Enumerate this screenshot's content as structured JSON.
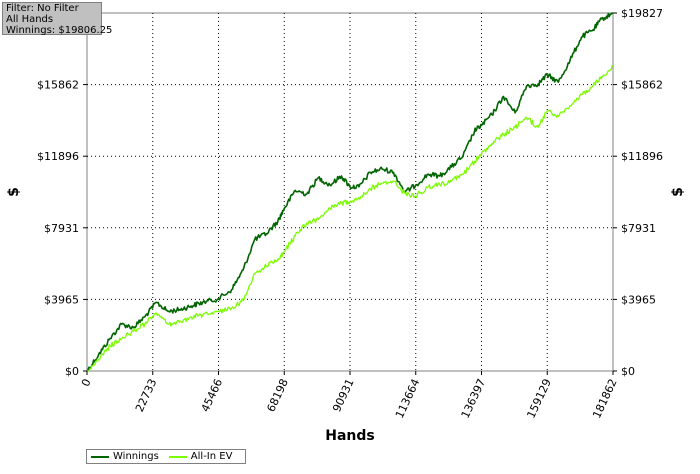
{
  "info_box": {
    "filter": "Filter: No Filter",
    "hands": "All Hands",
    "winnings": "Winnings: $19806.25"
  },
  "chart_data": {
    "type": "line",
    "xlabel": "Hands",
    "ylabel": "$",
    "xlim": [
      0,
      181862
    ],
    "ylim": [
      0,
      19827
    ],
    "x_ticks": [
      "0",
      "22733",
      "45466",
      "68198",
      "90931",
      "113664",
      "136397",
      "159129",
      "181862"
    ],
    "y_ticks": [
      "$0",
      "$3965",
      "$7931",
      "$11896",
      "$15862",
      "$19827"
    ],
    "grid": true,
    "legend_position": "bottom-left",
    "series": [
      {
        "name": "Winnings",
        "color": "#006400",
        "x": [
          0,
          4000,
          8000,
          12000,
          16000,
          20000,
          24000,
          28000,
          32000,
          36000,
          40000,
          45466,
          50000,
          54000,
          58000,
          62000,
          66000,
          68198,
          72000,
          76000,
          80000,
          84000,
          88000,
          90931,
          94000,
          98000,
          102000,
          106000,
          110000,
          113664,
          118000,
          122000,
          126000,
          130000,
          134000,
          136397,
          140000,
          144000,
          148000,
          152000,
          156000,
          159129,
          163000,
          167000,
          171000,
          175000,
          178000,
          181862
        ],
        "y": [
          0,
          900,
          1800,
          2600,
          2400,
          3000,
          3800,
          3300,
          3400,
          3600,
          3800,
          4000,
          4500,
          5600,
          7300,
          7600,
          8300,
          9000,
          10000,
          9800,
          10700,
          10300,
          10800,
          10200,
          10200,
          11000,
          11200,
          11000,
          9900,
          10300,
          10900,
          10800,
          11300,
          11900,
          13300,
          13600,
          14200,
          15200,
          14300,
          15800,
          15900,
          16400,
          16000,
          17200,
          18500,
          18900,
          19500,
          19806.25
        ]
      },
      {
        "name": "All-In EV",
        "color": "#7cfc00",
        "x": [
          0,
          4000,
          8000,
          12000,
          16000,
          20000,
          24000,
          28000,
          32000,
          36000,
          40000,
          45466,
          50000,
          54000,
          58000,
          62000,
          66000,
          68198,
          72000,
          76000,
          80000,
          84000,
          88000,
          90931,
          94000,
          98000,
          102000,
          106000,
          110000,
          113664,
          118000,
          122000,
          126000,
          130000,
          134000,
          136397,
          140000,
          144000,
          148000,
          152000,
          156000,
          159129,
          163000,
          167000,
          171000,
          175000,
          178000,
          181862
        ],
        "y": [
          0,
          600,
          1400,
          1800,
          2200,
          2600,
          3200,
          2600,
          2700,
          3000,
          3100,
          3300,
          3500,
          3900,
          5400,
          5800,
          6200,
          6600,
          7500,
          8200,
          8400,
          9000,
          9300,
          9400,
          9600,
          10100,
          10400,
          10500,
          9800,
          9700,
          10200,
          10300,
          10500,
          10900,
          11600,
          12000,
          12600,
          13100,
          13500,
          14000,
          13500,
          14400,
          14100,
          14700,
          15300,
          15800,
          16300,
          16900
        ]
      }
    ]
  }
}
